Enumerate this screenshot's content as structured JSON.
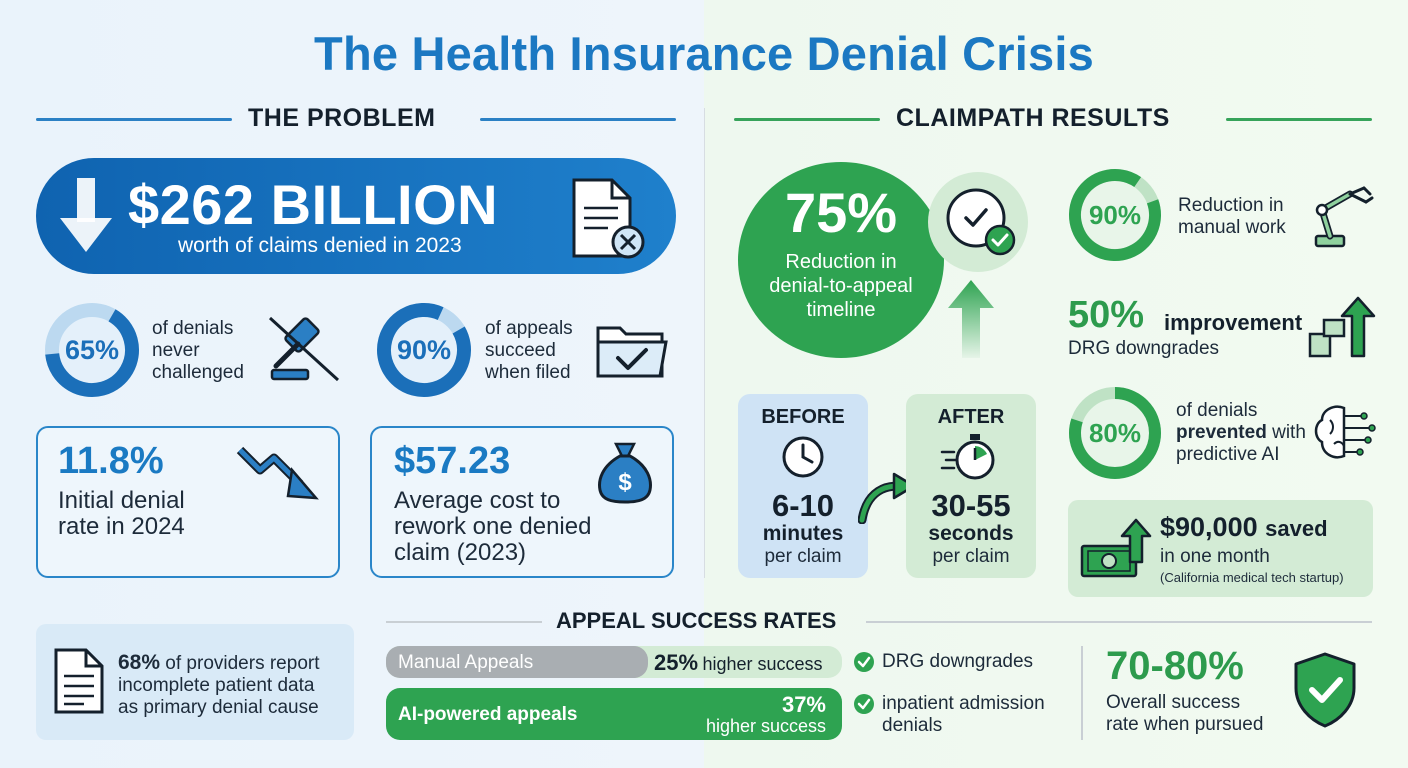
{
  "title": "The Health Insurance Denial Crisis",
  "problem": {
    "header": "THE PROBLEM",
    "banner": {
      "amount": "$262 BILLION",
      "subtitle": "worth of claims denied in 2023"
    },
    "stat_left": {
      "percent": "65%",
      "value": 0.65,
      "lines": [
        "of denials",
        "never",
        "challenged"
      ]
    },
    "stat_right": {
      "percent": "90%",
      "value": 0.9,
      "lines": [
        "of appeals",
        "succeed",
        "when filed"
      ]
    },
    "card_left": {
      "number": "11.8%",
      "lines": [
        "Initial denial",
        "rate in 2024"
      ]
    },
    "card_right": {
      "number": "$57.23",
      "lines": [
        "Average cost to",
        "rework one denied",
        "claim (2023)"
      ]
    },
    "note": {
      "strong": "68%",
      "rest_first": " of providers report",
      "lines": [
        "incomplete patient data",
        "as primary denial cause"
      ]
    }
  },
  "results": {
    "header": "CLAIMPATH RESULTS",
    "main": {
      "percent": "75%",
      "lines": [
        "Reduction in",
        "denial-to-appeal",
        "timeline"
      ]
    },
    "manual": {
      "percent": "90%",
      "value": 0.9,
      "lines": [
        "Reduction in",
        "manual work"
      ]
    },
    "drg": {
      "percent": "50%",
      "word": "improvement",
      "line2": "DRG downgrades"
    },
    "prevented": {
      "percent": "80%",
      "value": 0.8,
      "line1": "of denials",
      "bold": "prevented",
      "rest": " with",
      "line3": "predictive AI"
    },
    "before": {
      "label": "BEFORE",
      "big": "6-10",
      "unit": "minutes",
      "per": "per claim"
    },
    "after": {
      "label": "AFTER",
      "big": "30-55",
      "unit": "seconds",
      "per": "per claim"
    },
    "saved": {
      "amount": "$90,000",
      "word": "saved",
      "line2": "in one month",
      "line3": "(California medical tech startup)"
    }
  },
  "appeals": {
    "header": "APPEAL SUCCESS RATES",
    "manual": {
      "label": "Manual Appeals",
      "pct": "25%",
      "suffix": "higher success"
    },
    "ai": {
      "label": "AI-powered appeals",
      "pct": "37%",
      "suffix": "higher success"
    },
    "checks": [
      "DRG downgrades",
      "inpatient admission",
      "denials"
    ],
    "overall": {
      "range": "70-80%",
      "lines": [
        "Overall success",
        "rate when pursued"
      ]
    }
  },
  "colors": {
    "blue": "#1b78c2",
    "green": "#2ea351",
    "dark": "#14202c"
  },
  "icons": [
    "down-arrow-icon",
    "denied-document-icon",
    "gavel-crossed-icon",
    "folder-check-icon",
    "trend-down-icon",
    "money-bag-icon",
    "document-icon",
    "clock-check-icon",
    "up-arrow-icon",
    "robot-arm-icon",
    "bar-chart-up-icon",
    "brain-circuit-icon",
    "clock-icon",
    "stopwatch-icon",
    "curved-arrow-icon",
    "cash-up-icon",
    "check-icon",
    "shield-check-icon"
  ]
}
